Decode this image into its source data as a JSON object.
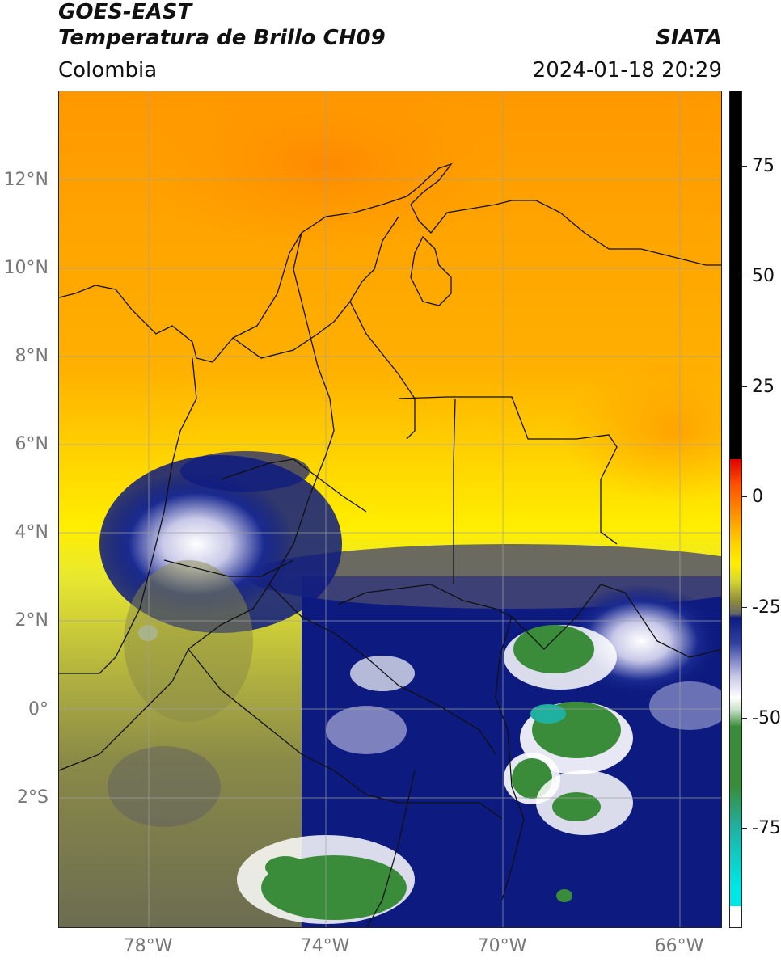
{
  "header": {
    "line1": "GOES-EAST",
    "line2": "Temperatura de Brillo CH09",
    "org": "SIATA",
    "region": "Colombia",
    "datetime": "2024-01-18 20:29"
  },
  "map": {
    "lat_labels": [
      "12°N",
      "10°N",
      "8°N",
      "6°N",
      "4°N",
      "2°N",
      "0°",
      "2°S"
    ],
    "lon_labels": [
      "78°W",
      "74°W",
      "70°W",
      "66°W"
    ],
    "gridlines": true,
    "extent": {
      "lon_min": -80,
      "lon_max": -65,
      "lat_min": -5,
      "lat_max": 14
    }
  },
  "colorbar": {
    "ticks": [
      "75",
      "50",
      "25",
      "0",
      "-25",
      "-50",
      "-75"
    ],
    "range": [
      -97,
      90
    ],
    "colors": {
      "black": "#000000",
      "red": "#e00000",
      "orange": "#ff9800",
      "yellow": "#ffe600",
      "olive": "#8c8c3c",
      "grey": "#666666",
      "navy": "#0d1a80",
      "white": "#ffffff",
      "green": "#3a8c3a",
      "teal": "#20b0a0",
      "cyan": "#00e6e6"
    }
  }
}
